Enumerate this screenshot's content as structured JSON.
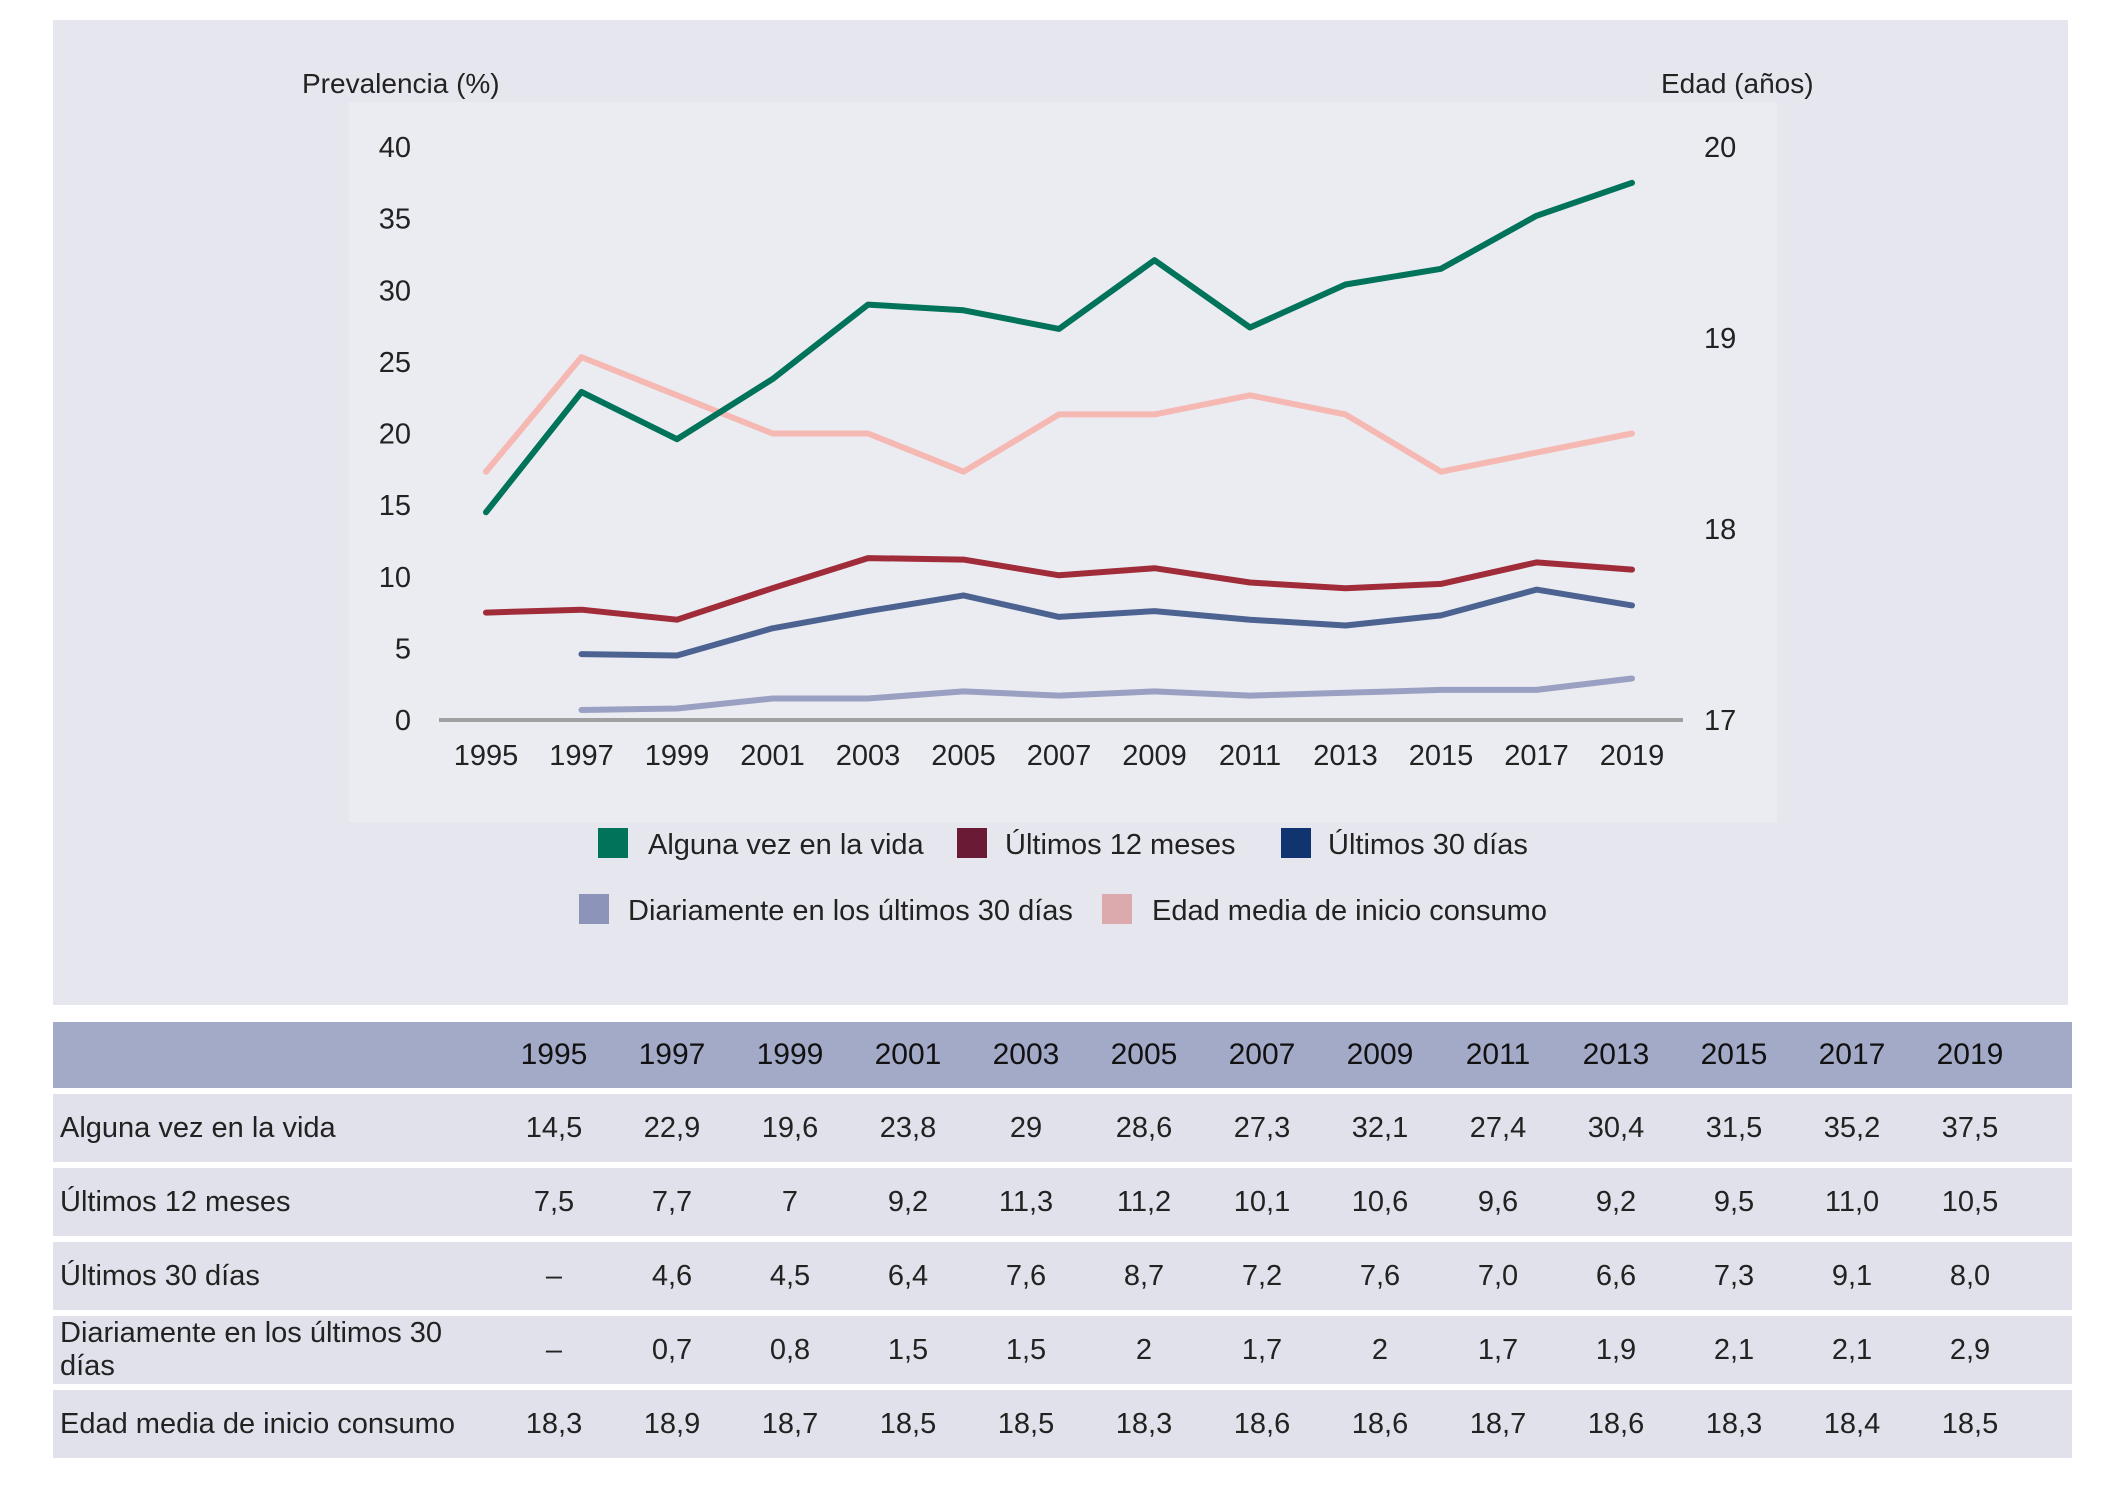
{
  "chart_data": {
    "type": "line",
    "title": "",
    "ylabel_left": "Prevalencia (%)",
    "ylabel_right": "Edad (años)",
    "x": [
      "1995",
      "1997",
      "1999",
      "2001",
      "2003",
      "2005",
      "2007",
      "2009",
      "2011",
      "2013",
      "2015",
      "2017",
      "2019"
    ],
    "y_left_ticks": [
      "0",
      "5",
      "10",
      "15",
      "20",
      "25",
      "30",
      "35",
      "40"
    ],
    "y_left_lim": [
      0,
      40
    ],
    "y_right_ticks": [
      "17",
      "18",
      "19",
      "20"
    ],
    "y_right_lim": [
      17,
      20
    ],
    "grid": false,
    "legend_position": "bottom",
    "series": [
      {
        "name": "Alguna vez en la vida",
        "axis": "left",
        "color": "#00735a",
        "legend_color": "#00735a",
        "values": [
          14.5,
          22.9,
          19.6,
          23.8,
          29,
          28.6,
          27.3,
          32.1,
          27.4,
          30.4,
          31.5,
          35.2,
          37.5
        ]
      },
      {
        "name": "Últimos 12 meses",
        "axis": "left",
        "color": "#a02c3a",
        "legend_color": "#6a1a35",
        "values": [
          7.5,
          7.7,
          7,
          9.2,
          11.3,
          11.2,
          10.1,
          10.6,
          9.6,
          9.2,
          9.5,
          11.0,
          10.5
        ]
      },
      {
        "name": "Últimos 30 días",
        "axis": "left",
        "color": "#4c6392",
        "legend_color": "#0f3470",
        "values": [
          null,
          4.6,
          4.5,
          6.4,
          7.6,
          8.7,
          7.2,
          7.6,
          7.0,
          6.6,
          7.3,
          9.1,
          8.0
        ]
      },
      {
        "name": "Diariamente en los últimos 30 días",
        "axis": "left",
        "color": "#9aa0c2",
        "legend_color": "#8d94b9",
        "values": [
          null,
          0.7,
          0.8,
          1.5,
          1.5,
          2,
          1.7,
          2,
          1.7,
          1.9,
          2.1,
          2.1,
          2.9
        ]
      },
      {
        "name": "Edad media de inicio consumo",
        "axis": "right",
        "color": "#f5b8b3",
        "legend_color": "#dca9ad",
        "values": [
          18.3,
          18.9,
          18.7,
          18.5,
          18.5,
          18.3,
          18.6,
          18.6,
          18.7,
          18.6,
          18.3,
          18.4,
          18.5
        ]
      }
    ]
  },
  "table": {
    "headers": [
      "",
      "1995",
      "1997",
      "1999",
      "2001",
      "2003",
      "2005",
      "2007",
      "2009",
      "2011",
      "2013",
      "2015",
      "2017",
      "2019"
    ],
    "rows": [
      {
        "label": "Alguna vez en la vida",
        "cells": [
          "14,5",
          "22,9",
          "19,6",
          "23,8",
          "29",
          "28,6",
          "27,3",
          "32,1",
          "27,4",
          "30,4",
          "31,5",
          "35,2",
          "37,5"
        ]
      },
      {
        "label": "Últimos 12 meses",
        "cells": [
          "7,5",
          "7,7",
          "7",
          "9,2",
          "11,3",
          "11,2",
          "10,1",
          "10,6",
          "9,6",
          "9,2",
          "9,5",
          "11,0",
          "10,5"
        ]
      },
      {
        "label": "Últimos 30 días",
        "cells": [
          "–",
          "4,6",
          "4,5",
          "6,4",
          "7,6",
          "8,7",
          "7,2",
          "7,6",
          "7,0",
          "6,6",
          "7,3",
          "9,1",
          "8,0"
        ]
      },
      {
        "label": "Diariamente en los últimos 30 días",
        "cells": [
          "–",
          "0,7",
          "0,8",
          "1,5",
          "1,5",
          "2",
          "1,7",
          "2",
          "1,7",
          "1,9",
          "2,1",
          "2,1",
          "2,9"
        ]
      },
      {
        "label": "Edad media de inicio consumo",
        "cells": [
          "18,3",
          "18,9",
          "18,7",
          "18,5",
          "18,5",
          "18,3",
          "18,6",
          "18,6",
          "18,7",
          "18,6",
          "18,3",
          "18,4",
          "18,5"
        ]
      }
    ]
  }
}
